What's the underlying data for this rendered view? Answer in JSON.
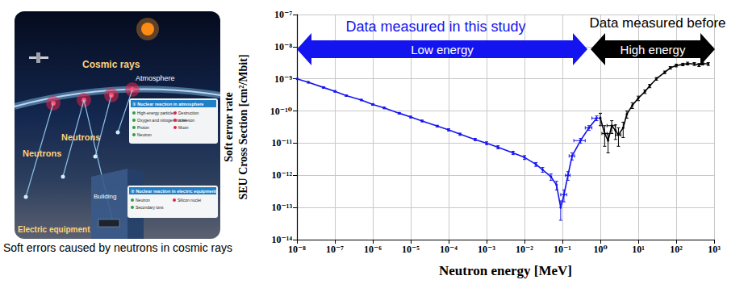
{
  "illustration": {
    "caption": "Soft errors caused by neutrons in cosmic rays",
    "labels": {
      "cosmic_rays": "Cosmic rays",
      "atmosphere": "Atmosphere",
      "neutrons_1": "Neutrons",
      "neutrons_2": "Neutrons",
      "building": "Building",
      "equipment": "Electric equipment"
    },
    "inset_1": {
      "title": "① Nuclear reaction in atmosphere",
      "texts": [
        "High-energy particles",
        "Destruction",
        "Oxygen and nitrogen nuclei",
        "π-meson",
        "Proton",
        "Muon",
        "Neutron"
      ]
    },
    "inset_2": {
      "title": "② Nuclear reaction in electric equipment",
      "texts": [
        "Neutron",
        "Silicon nuclei",
        "Secondary ions"
      ]
    }
  },
  "chart_data": {
    "type": "line",
    "x_label": "Neutron energy [MeV]",
    "y_label": [
      "Soft error rate",
      "SEU Cross Section [cm²/Mbit]"
    ],
    "log": true,
    "grid": true,
    "xlim": [
      1e-08,
      1000
    ],
    "ylim": [
      1e-14,
      1e-07
    ],
    "xticks": [
      {
        "value": 1e-08,
        "label": "10⁻⁸"
      },
      {
        "value": 1e-07,
        "label": "10⁻⁷"
      },
      {
        "value": 1e-06,
        "label": "10⁻⁶"
      },
      {
        "value": 1e-05,
        "label": "10⁻⁵"
      },
      {
        "value": 0.0001,
        "label": "10⁻⁴"
      },
      {
        "value": 0.001,
        "label": "10⁻³"
      },
      {
        "value": 0.01,
        "label": "10⁻²"
      },
      {
        "value": 0.1,
        "label": "10⁻¹"
      },
      {
        "value": 1,
        "label": "10⁰"
      },
      {
        "value": 10,
        "label": "10¹"
      },
      {
        "value": 100,
        "label": "10²"
      },
      {
        "value": 1000,
        "label": "10³"
      }
    ],
    "yticks": [
      {
        "value": 1e-14,
        "label": "10⁻¹⁴"
      },
      {
        "value": 1e-13,
        "label": "10⁻¹³"
      },
      {
        "value": 1e-12,
        "label": "10⁻¹²"
      },
      {
        "value": 1e-11,
        "label": "10⁻¹¹"
      },
      {
        "value": 1e-10,
        "label": "10⁻¹⁰"
      },
      {
        "value": 1e-09,
        "label": "10⁻⁹"
      },
      {
        "value": 1e-08,
        "label": "10⁻⁸"
      },
      {
        "value": 1e-07,
        "label": "10⁻⁷"
      }
    ],
    "annotations": [
      {
        "title": "Data measured in this study",
        "label": "Low energy",
        "color": "#1414f0"
      },
      {
        "title": "Data measured before",
        "label": "High energy",
        "color": "#000000"
      }
    ],
    "series": [
      {
        "name": "Low energy",
        "color": "#1414f0",
        "marker": "circle",
        "x": [
          1e-08,
          2e-08,
          5e-08,
          1e-07,
          2e-07,
          5e-07,
          1e-06,
          2e-06,
          5e-06,
          1e-05,
          2e-05,
          5e-05,
          0.0001,
          0.0002,
          0.0005,
          0.001,
          0.002,
          0.005,
          0.01,
          0.02,
          0.03,
          0.05,
          0.07,
          0.09,
          0.11,
          0.14,
          0.18,
          0.3,
          0.5,
          0.8
        ],
        "values": [
          1e-09,
          7.8e-10,
          5.4e-10,
          4.1e-10,
          3e-10,
          2.2e-10,
          1.6e-10,
          1.25e-10,
          8.5e-11,
          6.5e-11,
          4.9e-11,
          3.4e-11,
          2.6e-11,
          1.9e-11,
          1.3e-11,
          1e-11,
          7.5e-12,
          5e-12,
          3.6e-12,
          2.2e-12,
          1.5e-12,
          9e-13,
          5e-13,
          1e-13,
          2.5e-13,
          1e-12,
          4e-12,
          1.2e-11,
          3e-11,
          6e-11
        ],
        "y_low": [
          9.5e-10,
          7.4e-10,
          5.1e-10,
          3.9e-10,
          2.85e-10,
          2.1e-10,
          1.5e-10,
          1.18e-10,
          8e-11,
          6.1e-11,
          4.6e-11,
          3.2e-11,
          2.4e-11,
          1.75e-11,
          1.2e-11,
          9e-12,
          6.7e-12,
          4.4e-12,
          3.1e-12,
          1.9e-12,
          1.25e-12,
          7e-13,
          3.5e-13,
          4e-14,
          1.5e-13,
          7e-13,
          3e-12,
          1e-11,
          2.5e-11,
          5e-11
        ],
        "y_high": [
          1.05e-09,
          8.2e-10,
          5.7e-10,
          4.3e-10,
          3.15e-10,
          2.3e-10,
          1.7e-10,
          1.32e-10,
          9e-11,
          6.9e-11,
          5.2e-11,
          3.6e-11,
          2.8e-11,
          2.05e-11,
          1.4e-11,
          1.1e-11,
          8.3e-12,
          5.6e-12,
          4.1e-12,
          2.5e-12,
          1.75e-12,
          1.1e-12,
          6.5e-13,
          1.6e-13,
          3.5e-13,
          1.3e-12,
          5e-12,
          1.4e-11,
          3.5e-11,
          7e-11
        ],
        "x_low": [
          null,
          null,
          null,
          null,
          null,
          null,
          null,
          null,
          null,
          null,
          null,
          null,
          null,
          null,
          null,
          null,
          null,
          null,
          null,
          null,
          null,
          null,
          null,
          null,
          0.09,
          0.12,
          0.15,
          0.2,
          0.4,
          0.6
        ],
        "x_high": [
          null,
          null,
          null,
          null,
          null,
          null,
          null,
          null,
          null,
          null,
          null,
          null,
          null,
          null,
          null,
          null,
          null,
          null,
          null,
          null,
          null,
          null,
          null,
          null,
          0.13,
          0.16,
          0.21,
          0.4,
          0.6,
          1.0
        ]
      },
      {
        "name": "High energy",
        "color": "#000000",
        "marker": "circle",
        "x": [
          1.0,
          1.3,
          1.6,
          2.0,
          2.5,
          3.0,
          4.0,
          5.0,
          7,
          10,
          15,
          20,
          30,
          50,
          70,
          100,
          150,
          200,
          300,
          400,
          500,
          700
        ],
        "values": [
          6e-11,
          2e-11,
          1.2e-11,
          3.5e-11,
          2.5e-11,
          1.8e-11,
          3e-11,
          8e-11,
          1.5e-10,
          2.5e-10,
          4e-10,
          6e-10,
          1e-09,
          1.6e-09,
          2.2e-09,
          2.6e-09,
          2.8e-09,
          3e-09,
          2.9e-09,
          2.7e-09,
          3e-09,
          2.9e-09
        ],
        "y_low": [
          3.5e-11,
          8e-12,
          5e-12,
          2e-11,
          1.3e-11,
          8e-12,
          1.5e-11,
          6e-11,
          1.2e-10,
          2.1e-10,
          3.5e-10,
          5.3e-10,
          9e-10,
          1.45e-09,
          2e-09,
          2.35e-09,
          2.55e-09,
          2.7e-09,
          2.6e-09,
          2.4e-09,
          2.7e-09,
          2.6e-09
        ],
        "y_high": [
          8.5e-11,
          3.5e-11,
          2e-11,
          5e-11,
          3.7e-11,
          3e-11,
          4.5e-11,
          1e-10,
          1.8e-10,
          2.9e-10,
          4.5e-10,
          6.7e-10,
          1.1e-09,
          1.75e-09,
          2.4e-09,
          2.85e-09,
          3.05e-09,
          3.3e-09,
          3.2e-09,
          3e-09,
          3.3e-09,
          3.2e-09
        ],
        "x_low": [
          null,
          1.1,
          null,
          1.5,
          null,
          2.5,
          null,
          null,
          null,
          null,
          null,
          null,
          null,
          null,
          null,
          null,
          null,
          null,
          null,
          null,
          null,
          null
        ],
        "x_high": [
          null,
          1.5,
          null,
          2.5,
          null,
          3.5,
          null,
          null,
          null,
          null,
          null,
          null,
          null,
          null,
          null,
          null,
          null,
          null,
          null,
          null,
          null,
          null
        ]
      }
    ]
  }
}
